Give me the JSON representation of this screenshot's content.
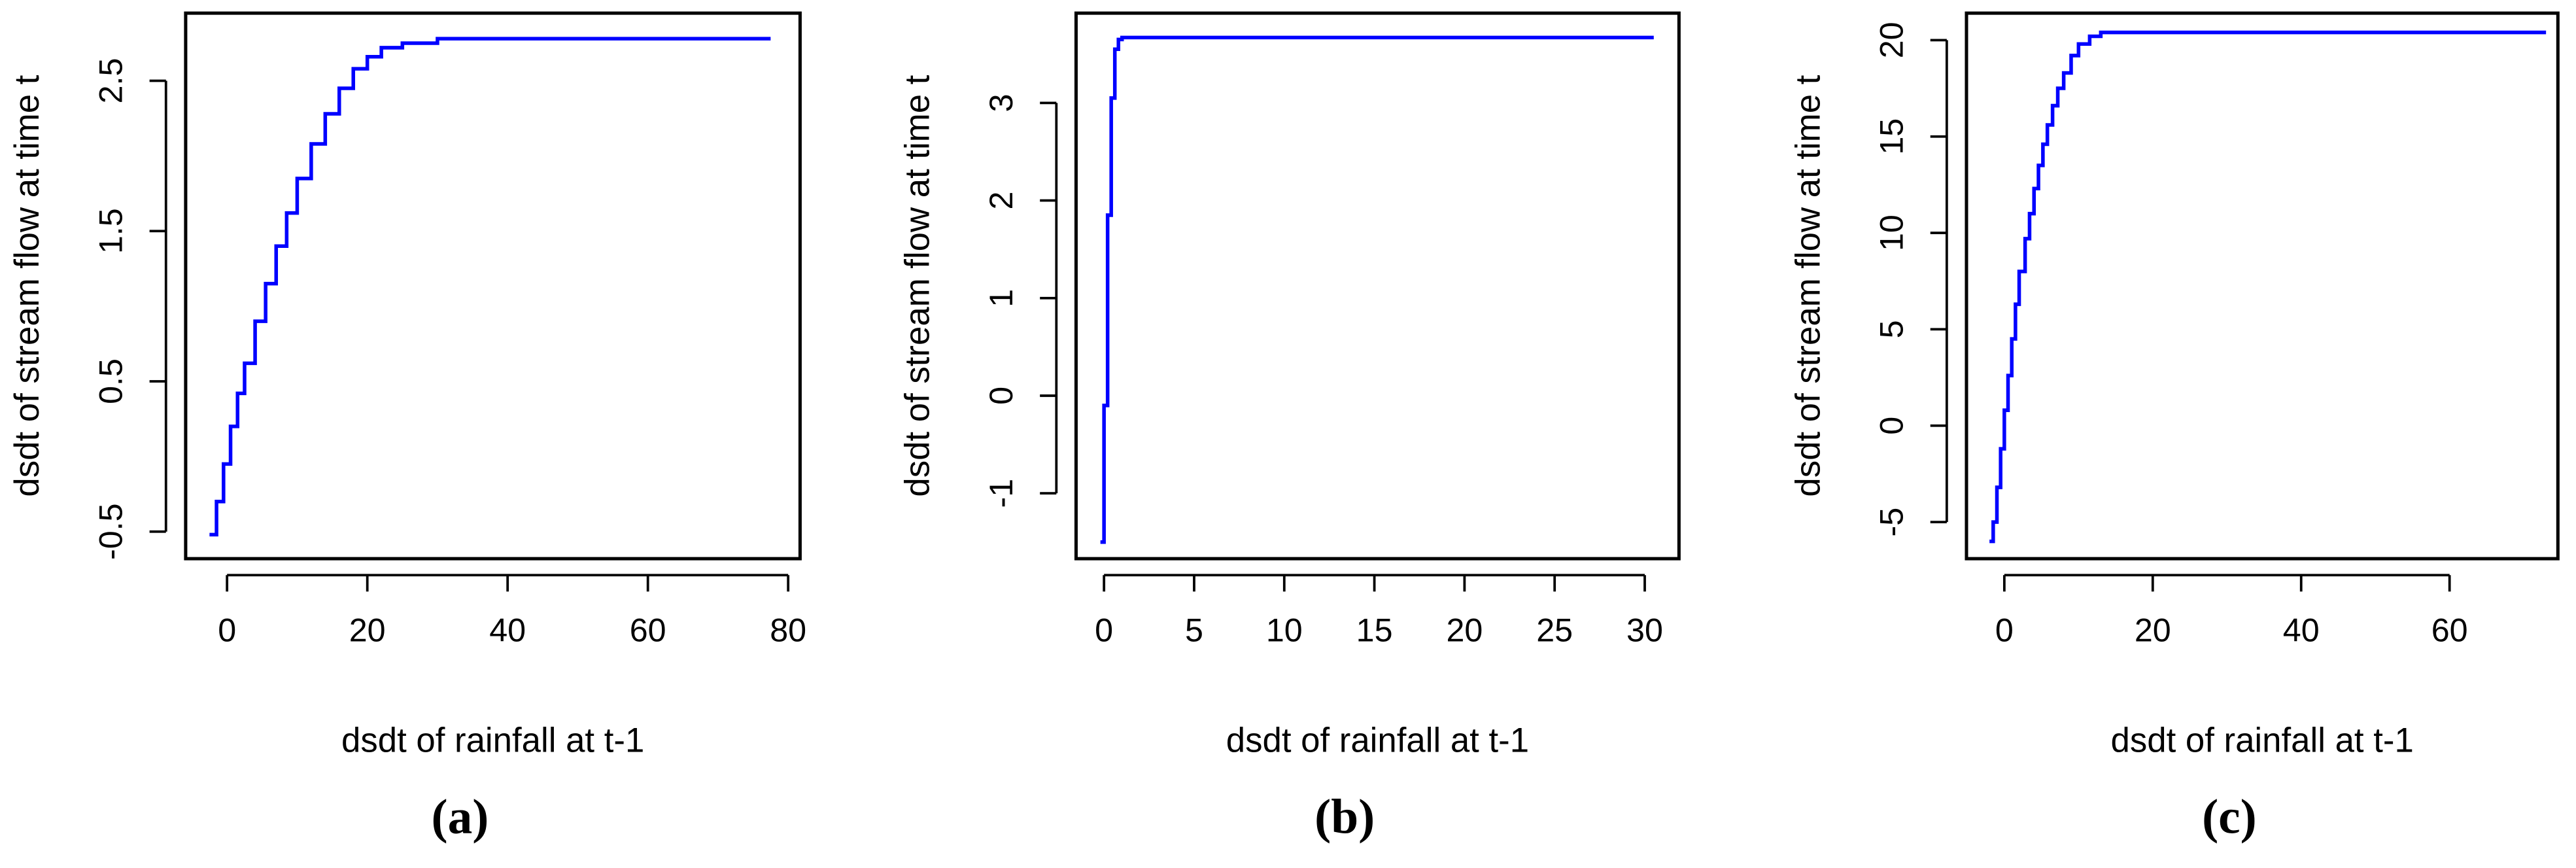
{
  "chart_data": [
    {
      "type": "step",
      "caption": "(a)",
      "xlabel": "dsdt of rainfall at t-1",
      "ylabel": "dsdt of stream flow at time t",
      "color": "#0000ff",
      "x": [
        -2.5,
        -1.5,
        -0.5,
        0.5,
        1.5,
        2.5,
        4,
        5.5,
        7,
        8.5,
        10,
        12,
        14,
        16,
        18,
        20,
        22,
        25,
        30,
        77.5
      ],
      "values": [
        -0.52,
        -0.3,
        -0.05,
        0.2,
        0.42,
        0.62,
        0.9,
        1.15,
        1.4,
        1.62,
        1.85,
        2.08,
        2.28,
        2.45,
        2.58,
        2.66,
        2.72,
        2.75,
        2.78,
        2.78
      ],
      "xlim": [
        -5.9,
        81.7
      ],
      "ylim": [
        -0.68,
        2.95
      ],
      "xticks": [
        0,
        20,
        40,
        60,
        80
      ],
      "yticks": [
        -0.5,
        0.5,
        1.5,
        2.5
      ]
    },
    {
      "type": "step",
      "caption": "(b)",
      "xlabel": "dsdt of rainfall at t-1",
      "ylabel": "dsdt of stream flow at time t",
      "color": "#0000ff",
      "x": [
        -0.2,
        0,
        0.2,
        0.4,
        0.6,
        0.8,
        1.0,
        30.5
      ],
      "values": [
        -1.5,
        -0.1,
        1.85,
        3.05,
        3.55,
        3.65,
        3.67,
        3.67
      ],
      "xlim": [
        -1.55,
        31.9
      ],
      "ylim": [
        -1.67,
        3.92
      ],
      "xticks": [
        0,
        5,
        10,
        15,
        20,
        25,
        30
      ],
      "yticks": [
        -1,
        0,
        1,
        2,
        3
      ]
    },
    {
      "type": "step",
      "caption": "(c)",
      "xlabel": "dsdt of rainfall at t-1",
      "ylabel": "dsdt of stream flow at time t",
      "color": "#0000ff",
      "x": [
        -2,
        -1.5,
        -1,
        -0.5,
        0,
        0.5,
        1,
        1.5,
        2,
        2.8,
        3.4,
        4,
        4.6,
        5.2,
        5.8,
        6.5,
        7.2,
        8,
        9,
        10,
        11.5,
        13,
        73
      ],
      "values": [
        -6,
        -5,
        -3.2,
        -1.2,
        0.8,
        2.6,
        4.5,
        6.3,
        8,
        9.7,
        11,
        12.3,
        13.5,
        14.6,
        15.6,
        16.6,
        17.5,
        18.3,
        19.2,
        19.8,
        20.2,
        20.4,
        20.4
      ],
      "xlim": [
        -5.1,
        74.6
      ],
      "ylim": [
        -6.9,
        21.4
      ],
      "xticks": [
        0,
        20,
        40,
        60
      ],
      "yticks": [
        -5,
        0,
        5,
        10,
        15,
        20
      ]
    }
  ]
}
